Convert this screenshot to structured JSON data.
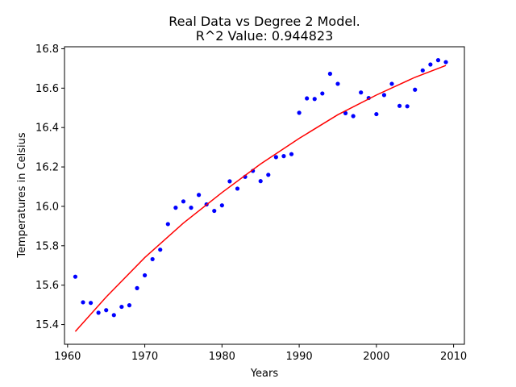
{
  "chart_data": {
    "type": "scatter",
    "title_line1": "Real Data vs Degree 2 Model.",
    "title_line2": "R^2 Value: 0.944823",
    "xlabel": "Years",
    "ylabel": "Temperatures in Celsius",
    "xlim": [
      1959.6,
      2011.4
    ],
    "ylim": [
      15.3,
      16.81
    ],
    "xticks": [
      1960,
      1970,
      1980,
      1990,
      2000,
      2010
    ],
    "yticks": [
      15.4,
      15.6,
      15.8,
      16.0,
      16.2,
      16.4,
      16.6,
      16.8
    ],
    "grid": false,
    "series": [
      {
        "kind": "points",
        "color": "#0000ff",
        "x": [
          1961,
          1962,
          1963,
          1964,
          1965,
          1966,
          1967,
          1968,
          1969,
          1970,
          1971,
          1972,
          1973,
          1974,
          1975,
          1976,
          1977,
          1978,
          1979,
          1980,
          1981,
          1982,
          1983,
          1984,
          1985,
          1986,
          1987,
          1988,
          1989,
          1990,
          1991,
          1992,
          1993,
          1994,
          1995,
          1996,
          1997,
          1998,
          1999,
          2000,
          2001,
          2002,
          2003,
          2004,
          2005,
          2006,
          2007,
          2008,
          2009
        ],
        "y": [
          15.643,
          15.513,
          15.51,
          15.46,
          15.473,
          15.448,
          15.49,
          15.498,
          15.585,
          15.65,
          15.732,
          15.78,
          15.91,
          15.993,
          16.025,
          15.993,
          16.058,
          16.01,
          15.977,
          16.005,
          16.127,
          16.09,
          16.15,
          16.18,
          16.128,
          16.16,
          16.25,
          16.255,
          16.265,
          16.475,
          16.548,
          16.545,
          16.573,
          16.673,
          16.622,
          16.473,
          16.458,
          16.578,
          16.55,
          16.468,
          16.565,
          16.622,
          16.51,
          16.508,
          16.592,
          16.69,
          16.72,
          16.742,
          16.732
        ]
      },
      {
        "kind": "curve",
        "color": "#ff0000",
        "x": [
          1961,
          1965,
          1970,
          1975,
          1980,
          1985,
          1990,
          1995,
          2000,
          2005,
          2009
        ],
        "y": [
          15.365,
          15.54,
          15.74,
          15.915,
          16.07,
          16.215,
          16.345,
          16.465,
          16.565,
          16.655,
          16.715
        ]
      }
    ]
  }
}
